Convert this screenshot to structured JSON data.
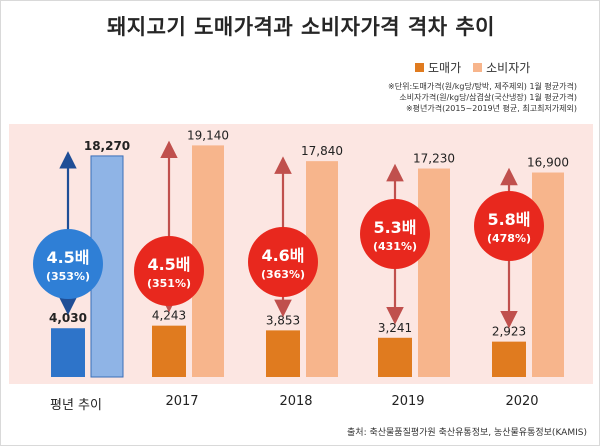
{
  "title": "돼지고기 도매가격과 소비자가격 격차 추이",
  "legend": {
    "wholesale": "도매가",
    "consumer": "소비자가"
  },
  "notes": [
    "※단위:도매가격(원/kg당/탕박, 제주제외) 1월 평균가격)",
    "소비자가격(원/kg당/삼겹살(국산냉장) 1월 평균가격)",
    "※평년가격(2015~2019년 평균, 최고최저가제외)"
  ],
  "source": "출처: 축산물품질평가원 축산유통정보, 농산물유통정보(KAMIS)",
  "colors": {
    "wholesale": "#e07b1f",
    "consumer": "#f7b58c",
    "avg_wholesale": "#2e74c9",
    "avg_consumer": "#8fb4e6",
    "bubble_red": "#e8281e",
    "bubble_blue": "#2f7fd6",
    "arrow_red": "#c0504d",
    "arrow_blue": "#1f4e96",
    "panel_bg": "#fce6e2"
  },
  "chart_data": {
    "type": "bar",
    "title": "돼지고기 도매가격과 소비자가격 격차 추이",
    "categories": [
      "평년 추이",
      "2017",
      "2018",
      "2019",
      "2020"
    ],
    "series": [
      {
        "name": "도매가",
        "values": [
          4030,
          4243,
          3853,
          3241,
          2923
        ]
      },
      {
        "name": "소비자가",
        "values": [
          18270,
          19140,
          17840,
          17230,
          16900
        ]
      }
    ],
    "value_labels": {
      "wholesale": [
        "4,030",
        "4,243",
        "3,853",
        "3,241",
        "2,923"
      ],
      "consumer": [
        "18,270",
        "19,140",
        "17,840",
        "17,230",
        "16,900"
      ]
    },
    "gap_ratios": [
      {
        "times": "4.5배",
        "percent": "(353%)"
      },
      {
        "times": "4.5배",
        "percent": "(351%)"
      },
      {
        "times": "4.6배",
        "percent": "(363%)"
      },
      {
        "times": "5.3배",
        "percent": "(431%)"
      },
      {
        "times": "5.8배",
        "percent": "(478%)"
      }
    ],
    "xlabel": "",
    "ylabel": "",
    "ylim": [
      0,
      21000
    ],
    "grid": false,
    "legend_position": "top-right"
  }
}
